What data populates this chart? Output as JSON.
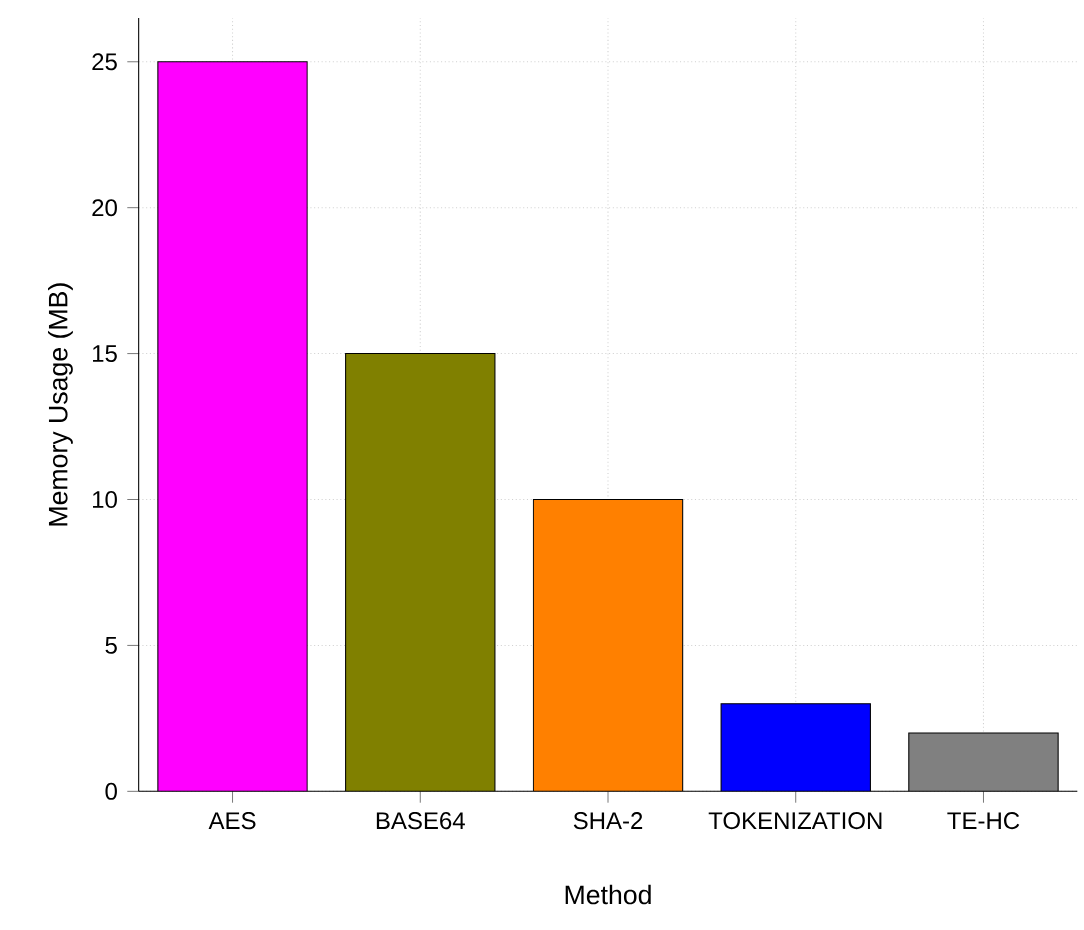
{
  "chart_data": {
    "type": "bar",
    "xlabel": "Method",
    "ylabel": "Memory Usage (MB)",
    "categories": [
      "AES",
      "BASE64",
      "SHA-2",
      "TOKENIZATION",
      "TE-HC"
    ],
    "values": [
      25,
      15,
      10,
      3,
      2
    ],
    "colors": [
      "#ff00ff",
      "#808000",
      "#ff8000",
      "#0000ff",
      "#808080"
    ],
    "ylim": [
      0,
      26.5
    ],
    "yticks": [
      0,
      5,
      10,
      15,
      20,
      25
    ],
    "grid": true
  }
}
